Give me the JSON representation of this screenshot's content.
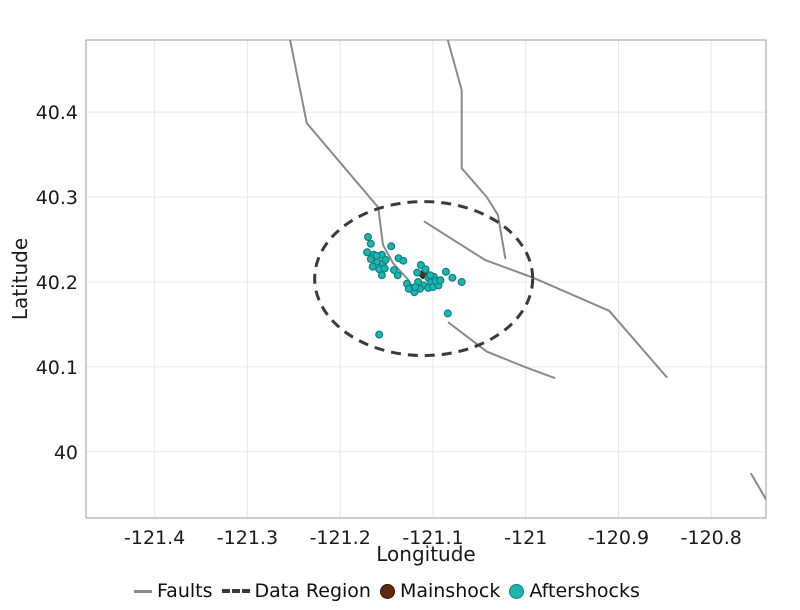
{
  "chart_data": {
    "type": "scatter",
    "title": "",
    "xlabel": "Longitude",
    "ylabel": "Latitude",
    "xlim": [
      -121.474,
      -120.741
    ],
    "ylim": [
      39.922,
      40.485
    ],
    "grid": true,
    "legend_position": "bottom",
    "x_ticks": [
      {
        "value": -121.4,
        "label": "-121.4"
      },
      {
        "value": -121.3,
        "label": "-121.3"
      },
      {
        "value": -121.2,
        "label": "-121.2"
      },
      {
        "value": -121.1,
        "label": "-121.1"
      },
      {
        "value": -121.0,
        "label": "-121"
      },
      {
        "value": -120.9,
        "label": "-120.9"
      },
      {
        "value": -120.8,
        "label": "-120.8"
      }
    ],
    "y_ticks": [
      {
        "value": 40.4,
        "label": "40.4"
      },
      {
        "value": 40.3,
        "label": "40.3"
      },
      {
        "value": 40.2,
        "label": "40.2"
      },
      {
        "value": 40.1,
        "label": "40.1"
      },
      {
        "value": 40.0,
        "label": "40"
      }
    ],
    "series": [
      {
        "name": "Faults",
        "type": "line",
        "color": "#8a8a8a",
        "stroke_width": 2,
        "lines": [
          [
            [
              -121.254,
              40.485
            ],
            [
              -121.236,
              40.387
            ],
            [
              -121.159,
              40.288
            ],
            [
              -121.154,
              40.244
            ],
            [
              -121.143,
              40.222
            ],
            [
              -121.127,
              40.203
            ],
            [
              -121.12,
              40.188
            ]
          ],
          [
            [
              -121.084,
              40.485
            ],
            [
              -121.069,
              40.426
            ],
            [
              -121.069,
              40.334
            ],
            [
              -121.042,
              40.3
            ],
            [
              -121.03,
              40.279
            ],
            [
              -121.022,
              40.228
            ]
          ],
          [
            [
              -121.109,
              40.271
            ],
            [
              -121.044,
              40.226
            ],
            [
              -120.992,
              40.205
            ],
            [
              -120.91,
              40.166
            ],
            [
              -120.848,
              40.088
            ]
          ],
          [
            [
              -121.083,
              40.152
            ],
            [
              -121.042,
              40.118
            ],
            [
              -120.999,
              40.099
            ],
            [
              -120.969,
              40.087
            ]
          ],
          [
            [
              -120.757,
              39.974
            ],
            [
              -120.741,
              39.944
            ]
          ]
        ]
      },
      {
        "name": "Data Region",
        "type": "ellipse",
        "color": "#3a3a3a",
        "stroke_width": 3,
        "dash": "10 7",
        "center": [
          -121.11,
          40.204
        ],
        "rx": 0.1175,
        "ry": 0.0907
      },
      {
        "name": "Mainshock",
        "type": "scatter",
        "marker": "diamond",
        "fill": "#5c2b0d",
        "stroke": "#241103",
        "size": 4.5,
        "points": [
          [
            -121.111,
            40.209
          ]
        ]
      },
      {
        "name": "Aftershocks",
        "type": "scatter",
        "marker": "circle",
        "fill": "#1cb5b2",
        "stroke": "#0f807e",
        "size": 3.4,
        "points": [
          [
            -121.17,
            40.253
          ],
          [
            -121.167,
            40.245
          ],
          [
            -121.171,
            40.235
          ],
          [
            -121.164,
            40.232
          ],
          [
            -121.155,
            40.232
          ],
          [
            -121.145,
            40.242
          ],
          [
            -121.167,
            40.227
          ],
          [
            -121.16,
            40.224
          ],
          [
            -121.154,
            40.222
          ],
          [
            -121.165,
            40.218
          ],
          [
            -121.158,
            40.215
          ],
          [
            -121.152,
            40.216
          ],
          [
            -121.155,
            40.208
          ],
          [
            -121.137,
            40.228
          ],
          [
            -121.132,
            40.225
          ],
          [
            -121.138,
            40.208
          ],
          [
            -121.161,
            40.231
          ],
          [
            -121.151,
            40.226
          ],
          [
            -121.142,
            40.214
          ],
          [
            -121.128,
            40.198
          ],
          [
            -121.123,
            40.193
          ],
          [
            -121.12,
            40.188
          ],
          [
            -121.116,
            40.2
          ],
          [
            -121.117,
            40.211
          ],
          [
            -121.113,
            40.22
          ],
          [
            -121.108,
            40.215
          ],
          [
            -121.105,
            40.205
          ],
          [
            -121.102,
            40.2
          ],
          [
            -121.099,
            40.206
          ],
          [
            -121.11,
            40.196
          ],
          [
            -121.105,
            40.193
          ],
          [
            -121.1,
            40.194
          ],
          [
            -121.094,
            40.196
          ],
          [
            -121.097,
            40.201
          ],
          [
            -121.114,
            40.192
          ],
          [
            -121.119,
            40.194
          ],
          [
            -121.103,
            40.208
          ],
          [
            -121.126,
            40.192
          ],
          [
            -121.092,
            40.202
          ],
          [
            -121.086,
            40.212
          ],
          [
            -121.079,
            40.205
          ],
          [
            -121.069,
            40.2
          ],
          [
            -121.084,
            40.163
          ],
          [
            -121.158,
            40.138
          ]
        ]
      }
    ]
  },
  "legend": {
    "items": [
      {
        "label": "Faults",
        "swatch": "line",
        "color": "#8a8a8a"
      },
      {
        "label": "Data Region",
        "swatch": "dashed-line",
        "color": "#3a3a3a"
      },
      {
        "label": "Mainshock",
        "swatch": "circle",
        "color": "#5c2b0d"
      },
      {
        "label": "Aftershocks",
        "swatch": "circle",
        "color": "#1cb5b2"
      }
    ]
  },
  "colors": {
    "background": "#ffffff",
    "gridline": "#e8e8e8",
    "plot_border": "#9b9b9b",
    "text": "#1a1a1a"
  }
}
